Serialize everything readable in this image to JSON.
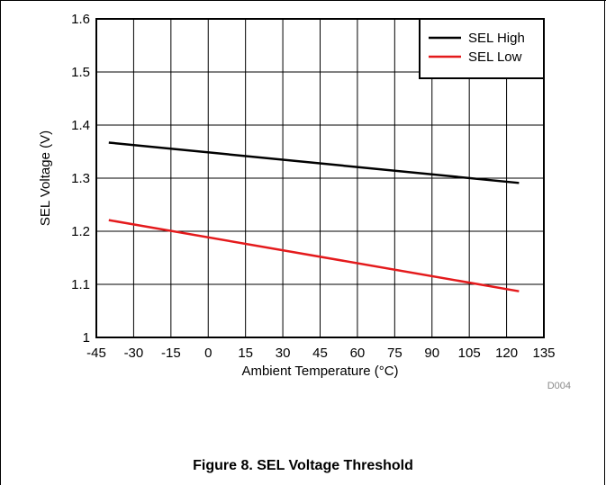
{
  "figure": {
    "caption": "Figure 8. SEL Voltage Threshold",
    "code": "D004"
  },
  "chart_data": {
    "type": "line",
    "xlabel": "Ambient Temperature (°C)",
    "ylabel": "SEL Voltage (V)",
    "xlim": [
      -45,
      135
    ],
    "ylim": [
      1.0,
      1.6
    ],
    "xticks": [
      -45,
      -30,
      -15,
      0,
      15,
      30,
      45,
      60,
      75,
      90,
      105,
      120,
      135
    ],
    "xtick_labels": [
      "-45",
      "-30",
      "-15",
      "0",
      "15",
      "30",
      "45",
      "60",
      "75",
      "90",
      "105",
      "120",
      "135"
    ],
    "yticks": [
      1.0,
      1.1,
      1.2,
      1.3,
      1.4,
      1.5,
      1.6
    ],
    "ytick_labels": [
      "1",
      "1.1",
      "1.2",
      "1.3",
      "1.4",
      "1.5",
      "1.6"
    ],
    "grid": true,
    "legend_position": "top-right",
    "series": [
      {
        "name": "SEL High",
        "color": "#000000",
        "x": [
          -40,
          125
        ],
        "y": [
          1.367,
          1.291
        ]
      },
      {
        "name": "SEL Low",
        "color": "#e41a1c",
        "x": [
          -40,
          125
        ],
        "y": [
          1.221,
          1.087
        ]
      }
    ]
  }
}
